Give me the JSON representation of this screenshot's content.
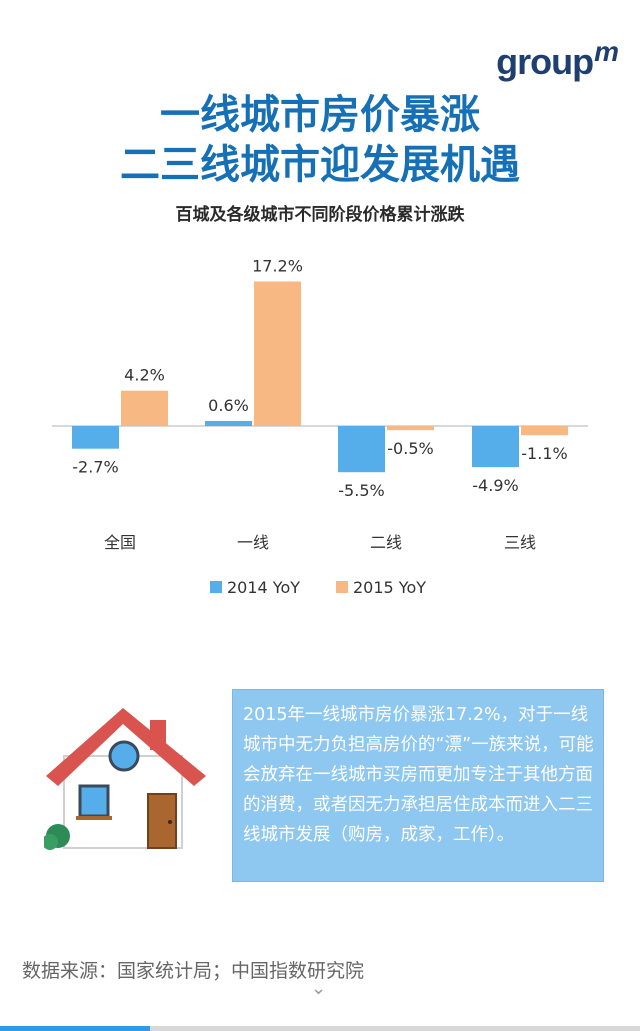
{
  "brand": {
    "logo_text": "group",
    "logo_mark": "m"
  },
  "title_line1": "一线城市房价暴涨",
  "title_line2": "二三线城市迎发展机遇",
  "subtitle": "百城及各级城市不同阶段价格累计涨跌",
  "chart_data": {
    "type": "bar",
    "title": "百城及各级城市不同阶段价格累计涨跌",
    "categories": [
      "全国",
      "一线",
      "二线",
      "三线"
    ],
    "series": [
      {
        "name": "2014 YoY",
        "values": [
          -2.7,
          0.6,
          -5.5,
          -4.9
        ],
        "labels": [
          "-2.7%",
          "0.6%",
          "-5.5%",
          "-4.9%"
        ],
        "color": "#55aee9"
      },
      {
        "name": "2015 YoY",
        "values": [
          4.2,
          17.2,
          -0.5,
          -1.1
        ],
        "labels": [
          "4.2%",
          "17.2%",
          "-0.5%",
          "-1.1%"
        ],
        "color": "#f8b883"
      }
    ],
    "xlabel": "",
    "ylabel": "",
    "ylim": [
      -6,
      18
    ],
    "grid": false,
    "legend": "bottom"
  },
  "info_text": "2015年一线城市房价暴涨17.2%，对于一线城市中无力负担高房价的“漂”一族来说，可能会放弃在一线城市买房而更加专注于其他方面的消费，或者因无力承担居住成本而进入二三线城市发展（购房，成家，工作）。",
  "source": "数据来源：国家统计局；中国指数研究院",
  "colors": {
    "title": "#1670b5",
    "info_bg": "#8ec7ef",
    "series_2014": "#55aee9",
    "series_2015": "#f8b883"
  }
}
